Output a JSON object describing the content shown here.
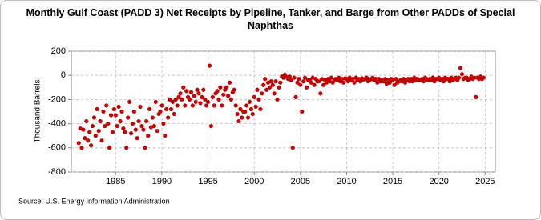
{
  "chart_data": {
    "type": "scatter",
    "title": "Monthly Gulf Coast (PADD 3) Net Receipts by Pipeline, Tanker, and Barge from Other PADDs of Special Naphthas",
    "y_label": "Thousand Barrels",
    "source": "Source: U.S. Energy Information Administration",
    "xlim": [
      1980.2,
      2026.1
    ],
    "xticks": [
      1985,
      1990,
      1995,
      2000,
      2005,
      2010,
      2015,
      2020,
      2025
    ],
    "ylim": [
      -800,
      200
    ],
    "yticks": [
      -800,
      -600,
      -400,
      -200,
      0,
      200
    ],
    "grid": true,
    "series": [
      {
        "color": "#cc0000",
        "x": [
          1981,
          1981.17,
          1981.33,
          1981.5,
          1981.67,
          1981.83,
          1982,
          1982.17,
          1982.33,
          1982.5,
          1982.67,
          1982.83,
          1983,
          1983.17,
          1983.33,
          1983.5,
          1983.67,
          1983.83,
          1984,
          1984.17,
          1984.33,
          1984.5,
          1984.67,
          1984.83,
          1985,
          1985.17,
          1985.33,
          1985.5,
          1985.67,
          1985.83,
          1986,
          1986.17,
          1986.33,
          1986.5,
          1986.67,
          1986.83,
          1987,
          1987.17,
          1987.33,
          1987.5,
          1987.67,
          1987.83,
          1988,
          1988.17,
          1988.33,
          1988.5,
          1988.67,
          1988.83,
          1989,
          1989.17,
          1989.33,
          1989.5,
          1989.67,
          1989.83,
          1990,
          1990.17,
          1990.33,
          1990.5,
          1990.67,
          1990.83,
          1991,
          1991.17,
          1991.33,
          1991.5,
          1991.67,
          1991.83,
          1992,
          1992.17,
          1992.33,
          1992.5,
          1992.67,
          1992.83,
          1993,
          1993.17,
          1993.33,
          1993.5,
          1993.67,
          1993.83,
          1994,
          1994.17,
          1994.33,
          1994.5,
          1994.67,
          1994.83,
          1995,
          1995.17,
          1995.33,
          1995.5,
          1995.67,
          1995.83,
          1996,
          1996.17,
          1996.33,
          1996.5,
          1996.67,
          1996.83,
          1997,
          1997.17,
          1997.33,
          1997.5,
          1997.67,
          1997.83,
          1998,
          1998.17,
          1998.33,
          1998.5,
          1998.67,
          1998.83,
          1999,
          1999.17,
          1999.33,
          1999.5,
          1999.67,
          1999.83,
          2000,
          2000.17,
          2000.33,
          2000.5,
          2000.67,
          2000.83,
          2001,
          2001.17,
          2001.33,
          2001.5,
          2001.67,
          2001.83,
          2002,
          2002.17,
          2002.33,
          2002.5,
          2002.67,
          2002.83,
          2003,
          2003.17,
          2003.33,
          2003.5,
          2003.67,
          2003.83,
          2004,
          2004.17,
          2004.33,
          2004.5,
          2004.67,
          2004.83,
          2005,
          2005.17,
          2005.33,
          2005.5,
          2005.67,
          2005.83,
          2006,
          2006.17,
          2006.33,
          2006.5,
          2006.67,
          2006.83,
          2007,
          2007.17,
          2007.33,
          2007.5,
          2007.67,
          2007.83,
          2008,
          2008.17,
          2008.33,
          2008.5,
          2008.67,
          2008.83,
          2009,
          2009.17,
          2009.33,
          2009.5,
          2009.67,
          2009.83,
          2010,
          2010.17,
          2010.33,
          2010.5,
          2010.67,
          2010.83,
          2011,
          2011.17,
          2011.33,
          2011.5,
          2011.67,
          2011.83,
          2012,
          2012.17,
          2012.33,
          2012.5,
          2012.67,
          2012.83,
          2013,
          2013.17,
          2013.33,
          2013.5,
          2013.67,
          2013.83,
          2014,
          2014.17,
          2014.33,
          2014.5,
          2014.67,
          2014.83,
          2015,
          2015.17,
          2015.33,
          2015.5,
          2015.67,
          2015.83,
          2016,
          2016.17,
          2016.33,
          2016.5,
          2016.67,
          2016.83,
          2017,
          2017.17,
          2017.33,
          2017.5,
          2017.67,
          2017.83,
          2018,
          2018.17,
          2018.33,
          2018.5,
          2018.67,
          2018.83,
          2019,
          2019.17,
          2019.33,
          2019.5,
          2019.67,
          2019.83,
          2020,
          2020.17,
          2020.33,
          2020.5,
          2020.67,
          2020.83,
          2021,
          2021.17,
          2021.33,
          2021.5,
          2021.67,
          2021.83,
          2022,
          2022.17,
          2022.33,
          2022.5,
          2022.67,
          2022.83,
          2023,
          2023.17,
          2023.33,
          2023.5,
          2023.67,
          2023.83,
          2024,
          2024.17,
          2024.33,
          2024.5,
          2024.67,
          2024.83
        ],
        "values": [
          -560,
          -440,
          -600,
          -450,
          -520,
          -380,
          -540,
          -470,
          -580,
          -420,
          -350,
          -500,
          -280,
          -460,
          -380,
          -540,
          -300,
          -420,
          -250,
          -400,
          -600,
          -330,
          -470,
          -280,
          -330,
          -420,
          -260,
          -380,
          -300,
          -440,
          -470,
          -600,
          -350,
          -220,
          -480,
          -400,
          -300,
          -450,
          -520,
          -380,
          -260,
          -420,
          -450,
          -600,
          -380,
          -500,
          -280,
          -430,
          -350,
          -420,
          -220,
          -460,
          -320,
          -300,
          -250,
          -400,
          -500,
          -280,
          -350,
          -200,
          -280,
          -220,
          -320,
          -200,
          -250,
          -180,
          -150,
          -200,
          -100,
          -250,
          -130,
          -180,
          -200,
          -140,
          -250,
          -170,
          -220,
          -120,
          -150,
          -230,
          -180,
          -120,
          -200,
          -250,
          -220,
          80,
          -420,
          -180,
          -250,
          -150,
          -130,
          -200,
          -100,
          -250,
          -160,
          -120,
          -100,
          -170,
          -60,
          -200,
          -140,
          -120,
          -250,
          -320,
          -380,
          -280,
          -350,
          -300,
          -300,
          -250,
          -350,
          -220,
          -280,
          -320,
          -180,
          -260,
          -120,
          -200,
          -280,
          -150,
          -80,
          -30,
          -120,
          -60,
          -100,
          -50,
          -80,
          -150,
          -50,
          -200,
          -100,
          -60,
          -10,
          -20,
          5,
          -15,
          -30,
          -10,
          -40,
          -600,
          -20,
          -180,
          -60,
          -30,
          -80,
          -300,
          -50,
          -20,
          -100,
          -40,
          -40,
          -60,
          -20,
          -80,
          -30,
          -50,
          -50,
          -150,
          -30,
          -80,
          -40,
          -60,
          -30,
          -50,
          -20,
          -60,
          -40,
          -30,
          -40,
          -20,
          -50,
          -30,
          -60,
          -25,
          -30,
          -50,
          -20,
          -40,
          -30,
          -60,
          -20,
          -40,
          -30,
          -50,
          -25,
          -35,
          -30,
          -20,
          -50,
          -40,
          -30,
          -20,
          -40,
          -30,
          -60,
          -30,
          -50,
          -40,
          -50,
          -30,
          -70,
          -40,
          -60,
          -30,
          -40,
          -80,
          -30,
          -60,
          -50,
          -40,
          -50,
          -30,
          -60,
          -40,
          -30,
          -50,
          -30,
          -50,
          -20,
          -40,
          -30,
          -40,
          -40,
          -30,
          -50,
          -20,
          -30,
          -40,
          -30,
          -40,
          -20,
          -50,
          -30,
          -30,
          -20,
          -40,
          -30,
          -50,
          -20,
          -30,
          -30,
          -50,
          -20,
          -40,
          -30,
          -20,
          -40,
          -20,
          60,
          10,
          -30,
          -20,
          -20,
          -40,
          -30,
          -10,
          -30,
          -20,
          -180,
          -20,
          -30,
          -10,
          -30,
          -20
        ]
      }
    ]
  }
}
